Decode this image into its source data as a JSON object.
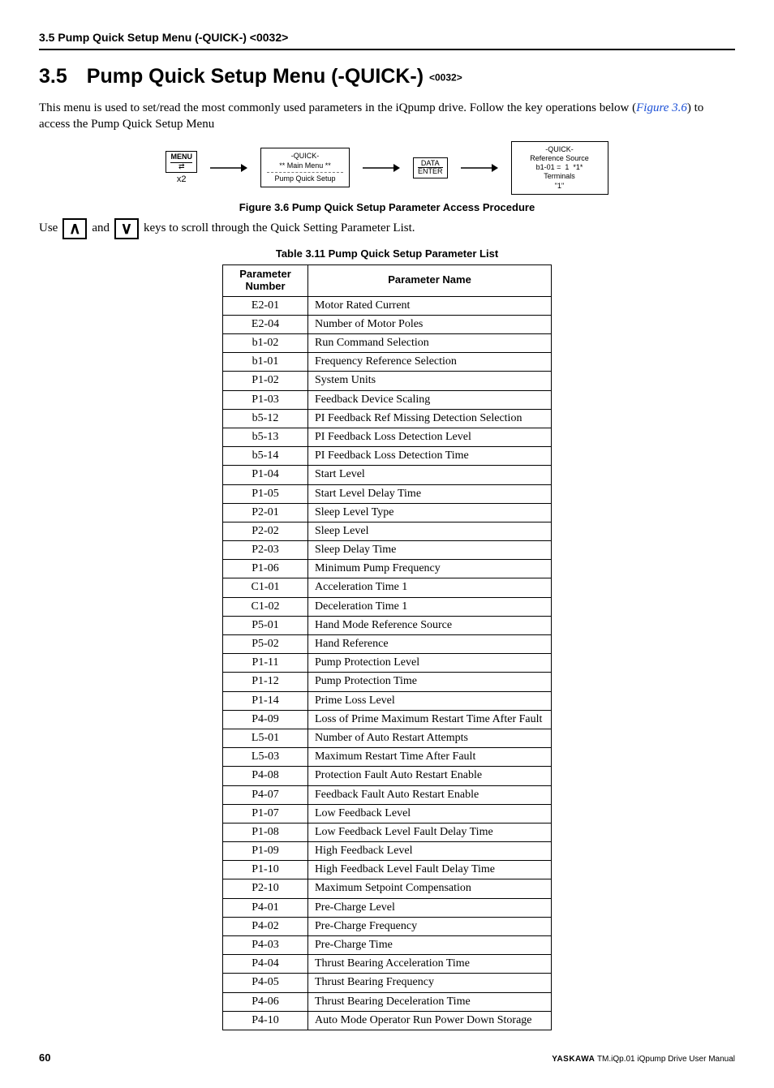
{
  "header": "3.5  Pump Quick Setup Menu (-QUICK-) <0032>",
  "title": {
    "num": "3.5",
    "text": "Pump Quick Setup Menu (-QUICK-)",
    "tag": "<0032>"
  },
  "intro_pre": "This menu is used to set/read the most commonly used parameters in the iQpump drive. Follow the key operations below (",
  "intro_ref": "Figure 3.6",
  "intro_post": ") to access the Pump Quick Setup Menu",
  "diagram": {
    "key1_top": "MENU",
    "key1_sub": "x2",
    "box1_l1": "-QUICK-",
    "box1_l2": "** Main Menu **",
    "box1_l3": "Pump Quick Setup",
    "key2_top": "DATA",
    "key2_bot": "ENTER",
    "box2_l1": "-QUICK-",
    "box2_l2": "Reference Source",
    "box2_l3a": "b1-01 =",
    "box2_l3b": "1",
    "box2_l3c": "*1*",
    "box2_l4": "Terminals",
    "box2_l5": "\"1\""
  },
  "fig_caption": "Figure 3.6  Pump Quick Setup Parameter Access Procedure",
  "scroll": {
    "pre": "Use",
    "mid": "and",
    "post": "keys to scroll through the Quick Setting Parameter List."
  },
  "tbl_caption": "Table 3.11  Pump Quick Setup Parameter List",
  "table": {
    "col1_l1": "Parameter",
    "col1_l2": "Number",
    "col2": "Parameter Name",
    "rows": [
      {
        "n": "E2-01",
        "name": "Motor Rated Current"
      },
      {
        "n": "E2-04",
        "name": "Number of Motor Poles"
      },
      {
        "n": "b1-02",
        "name": "Run Command Selection"
      },
      {
        "n": "b1-01",
        "name": "Frequency Reference Selection"
      },
      {
        "n": "P1-02",
        "name": "System Units"
      },
      {
        "n": "P1-03",
        "name": "Feedback Device Scaling"
      },
      {
        "n": "b5-12",
        "name": "PI Feedback Ref Missing Detection Selection"
      },
      {
        "n": "b5-13",
        "name": "PI Feedback Loss Detection Level"
      },
      {
        "n": "b5-14",
        "name": "PI Feedback Loss Detection Time"
      },
      {
        "n": "P1-04",
        "name": "Start Level"
      },
      {
        "n": "P1-05",
        "name": "Start Level Delay Time"
      },
      {
        "n": "P2-01",
        "name": "Sleep Level Type"
      },
      {
        "n": "P2-02",
        "name": "Sleep Level"
      },
      {
        "n": "P2-03",
        "name": "Sleep Delay Time"
      },
      {
        "n": "P1-06",
        "name": "Minimum Pump Frequency"
      },
      {
        "n": "C1-01",
        "name": "Acceleration Time 1"
      },
      {
        "n": "C1-02",
        "name": "Deceleration Time 1"
      },
      {
        "n": "P5-01",
        "name": "Hand Mode Reference Source"
      },
      {
        "n": "P5-02",
        "name": "Hand Reference"
      },
      {
        "n": "P1-11",
        "name": "Pump Protection Level"
      },
      {
        "n": "P1-12",
        "name": "Pump Protection Time"
      },
      {
        "n": "P1-14",
        "name": "Prime Loss Level"
      },
      {
        "n": "P4-09",
        "name": "Loss of Prime Maximum Restart Time After Fault"
      },
      {
        "n": "L5-01",
        "name": "Number of Auto Restart Attempts"
      },
      {
        "n": "L5-03",
        "name": "Maximum Restart Time After Fault"
      },
      {
        "n": "P4-08",
        "name": "Protection Fault Auto Restart Enable"
      },
      {
        "n": "P4-07",
        "name": "Feedback Fault Auto Restart Enable"
      },
      {
        "n": "P1-07",
        "name": "Low Feedback Level"
      },
      {
        "n": "P1-08",
        "name": "Low Feedback Level Fault Delay Time"
      },
      {
        "n": "P1-09",
        "name": "High Feedback Level"
      },
      {
        "n": "P1-10",
        "name": "High Feedback Level Fault Delay Time"
      },
      {
        "n": "P2-10",
        "name": "Maximum Setpoint Compensation"
      },
      {
        "n": "P4-01",
        "name": "Pre-Charge Level"
      },
      {
        "n": "P4-02",
        "name": "Pre-Charge Frequency"
      },
      {
        "n": "P4-03",
        "name": "Pre-Charge Time"
      },
      {
        "n": "P4-04",
        "name": "Thrust Bearing Acceleration Time"
      },
      {
        "n": "P4-05",
        "name": "Thrust Bearing Frequency"
      },
      {
        "n": "P4-06",
        "name": "Thrust Bearing Deceleration Time"
      },
      {
        "n": "P4-10",
        "name": "Auto Mode Operator Run Power Down Storage"
      }
    ]
  },
  "footer": {
    "page": "60",
    "brand": "YASKAWA",
    "manual": " TM.iQp.01 iQpump Drive User Manual"
  }
}
